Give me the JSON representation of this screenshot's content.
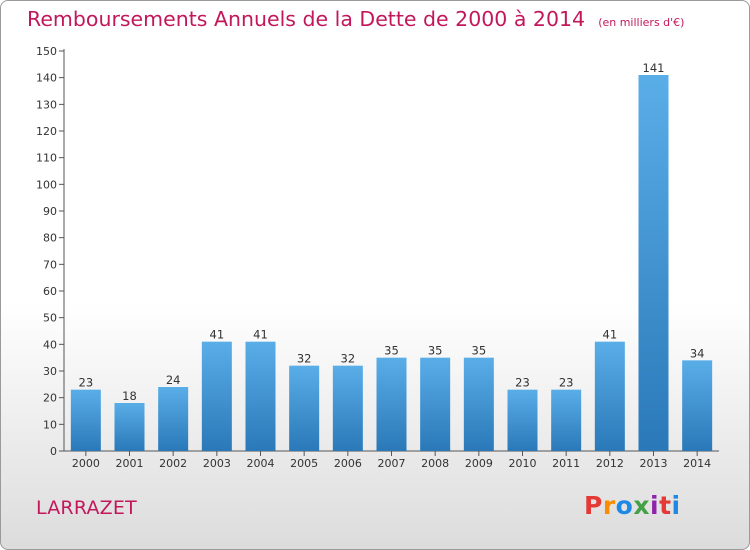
{
  "chart_data": {
    "type": "bar",
    "title": "Remboursements Annuels de la Dette de 2000 à 2014",
    "subtitle": "(en milliers d'€)",
    "categories": [
      "2000",
      "2001",
      "2002",
      "2003",
      "2004",
      "2005",
      "2006",
      "2007",
      "2008",
      "2009",
      "2010",
      "2011",
      "2012",
      "2013",
      "2014"
    ],
    "values": [
      23,
      18,
      24,
      41,
      41,
      32,
      32,
      35,
      35,
      35,
      23,
      23,
      41,
      141,
      34
    ],
    "ylim": [
      0,
      150
    ],
    "yticks": [
      0,
      10,
      20,
      30,
      40,
      50,
      60,
      70,
      80,
      90,
      100,
      110,
      120,
      130,
      140,
      150
    ],
    "grid": false,
    "bar_color_light": "#5aaee8",
    "bar_color_dark": "#2a78b8",
    "title_color": "#c2185b"
  },
  "footer": {
    "commune": "LARRAZET",
    "logo": "Proxiti"
  },
  "logo_colors": [
    "#e53935",
    "#fb8c00",
    "#1e88e5",
    "#43a047",
    "#8e24aa",
    "#e53935",
    "#1e88e5"
  ]
}
